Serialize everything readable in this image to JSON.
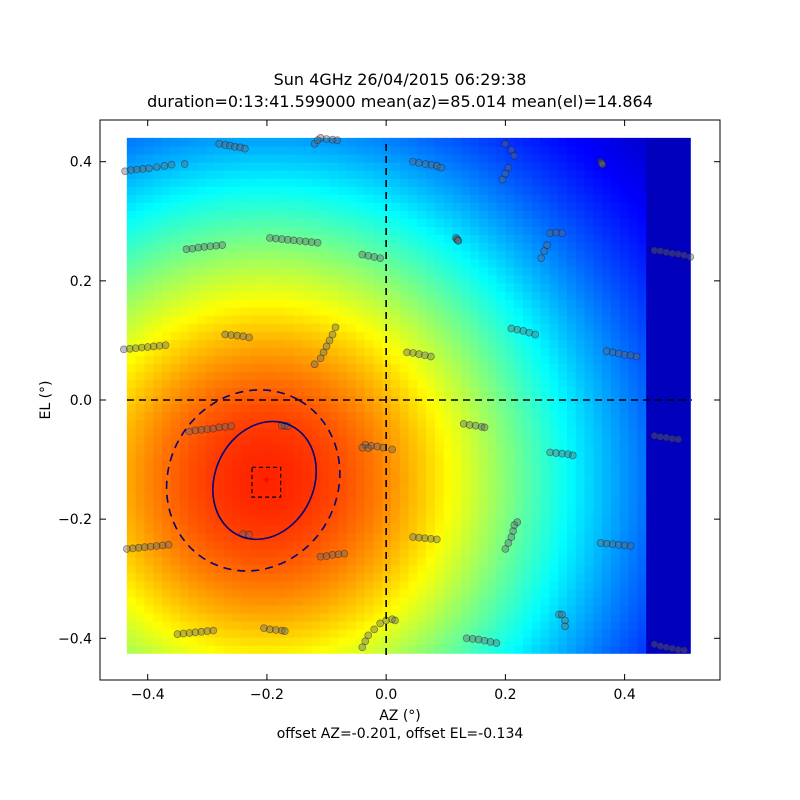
{
  "title_line1": "Sun 4GHz 26/04/2015 06:29:38",
  "title_line2": "duration=0:13:41.599000 mean(az)=85.014 mean(el)=14.864",
  "xlabel": "AZ (°)",
  "ylabel": "EL (°)",
  "footer": "offset AZ=-0.201, offset EL=-0.134",
  "chart_data": {
    "type": "heatmap",
    "title": "Sun 4GHz 26/04/2015 06:29:38",
    "subtitle": "duration=0:13:41.599000 mean(az)=85.014 mean(el)=14.864",
    "xlabel": "AZ (°)",
    "ylabel": "EL (°)",
    "note": "offset AZ=-0.201, offset EL=-0.134",
    "xlim": [
      -0.48,
      0.56
    ],
    "ylim": [
      -0.47,
      0.47
    ],
    "xticks": [
      -0.4,
      -0.2,
      0.0,
      0.2,
      0.4
    ],
    "xtick_labels": [
      "−0.4",
      "−0.2",
      "0.0",
      "0.2",
      "0.4"
    ],
    "yticks": [
      -0.4,
      -0.2,
      0.0,
      0.2,
      0.4
    ],
    "ytick_labels": [
      "−0.4",
      "−0.2",
      "0.0",
      "0.2",
      "0.4"
    ],
    "heatmap_extent": {
      "x": [
        -0.435,
        0.51
      ],
      "y": [
        -0.425,
        0.44
      ]
    },
    "colormap": "jet",
    "peak": {
      "az": -0.201,
      "el": -0.134
    },
    "crosshair": {
      "az": 0.0,
      "el": 0.0
    },
    "marker_color": "#ff0000",
    "contour_color": "#000080",
    "contours": [
      {
        "style": "solid",
        "center": [
          -0.204,
          -0.135
        ],
        "rx": 0.102,
        "ry": 0.083,
        "angle": -65
      },
      {
        "style": "dashed",
        "center": [
          -0.223,
          -0.135
        ],
        "rx": 0.155,
        "ry": 0.142,
        "angle": -60
      }
    ],
    "peak_box": {
      "x": [
        -0.225,
        -0.177
      ],
      "y": [
        -0.163,
        -0.113
      ]
    },
    "scan_points": [
      [
        -0.438,
        0.384
      ],
      [
        -0.428,
        0.386
      ],
      [
        -0.418,
        0.387
      ],
      [
        -0.408,
        0.388
      ],
      [
        -0.398,
        0.389
      ],
      [
        -0.385,
        0.391
      ],
      [
        -0.372,
        0.393
      ],
      [
        -0.36,
        0.395
      ],
      [
        -0.338,
        0.396
      ],
      [
        -0.28,
        0.43
      ],
      [
        -0.27,
        0.428
      ],
      [
        -0.262,
        0.427
      ],
      [
        -0.254,
        0.425
      ],
      [
        -0.245,
        0.424
      ],
      [
        -0.237,
        0.422
      ],
      [
        -0.11,
        0.44
      ],
      [
        -0.1,
        0.438
      ],
      [
        -0.09,
        0.437
      ],
      [
        -0.082,
        0.436
      ],
      [
        -0.12,
        0.43
      ],
      [
        -0.115,
        0.436
      ],
      [
        0.045,
        0.4
      ],
      [
        0.055,
        0.398
      ],
      [
        0.066,
        0.396
      ],
      [
        0.076,
        0.395
      ],
      [
        0.085,
        0.393
      ],
      [
        0.092,
        0.39
      ],
      [
        0.2,
        0.43
      ],
      [
        0.21,
        0.42
      ],
      [
        0.215,
        0.41
      ],
      [
        0.205,
        0.39
      ],
      [
        0.2,
        0.38
      ],
      [
        0.195,
        0.37
      ],
      [
        0.36,
        0.4
      ],
      [
        0.361,
        0.398
      ],
      [
        0.362,
        0.397
      ],
      [
        0.363,
        0.395
      ],
      [
        -0.335,
        0.253
      ],
      [
        -0.325,
        0.254
      ],
      [
        -0.315,
        0.256
      ],
      [
        -0.305,
        0.257
      ],
      [
        -0.295,
        0.258
      ],
      [
        -0.285,
        0.259
      ],
      [
        -0.275,
        0.26
      ],
      [
        -0.195,
        0.272
      ],
      [
        -0.185,
        0.271
      ],
      [
        -0.175,
        0.27
      ],
      [
        -0.165,
        0.269
      ],
      [
        -0.155,
        0.268
      ],
      [
        -0.145,
        0.267
      ],
      [
        -0.135,
        0.266
      ],
      [
        -0.125,
        0.265
      ],
      [
        -0.115,
        0.264
      ],
      [
        -0.04,
        0.244
      ],
      [
        -0.03,
        0.242
      ],
      [
        -0.02,
        0.24
      ],
      [
        -0.01,
        0.238
      ],
      [
        0.117,
        0.272
      ],
      [
        0.119,
        0.27
      ],
      [
        0.12,
        0.268
      ],
      [
        0.121,
        0.267
      ],
      [
        0.275,
        0.28
      ],
      [
        0.285,
        0.281
      ],
      [
        0.295,
        0.28
      ],
      [
        0.27,
        0.26
      ],
      [
        0.265,
        0.25
      ],
      [
        0.26,
        0.238
      ],
      [
        0.45,
        0.251
      ],
      [
        0.46,
        0.25
      ],
      [
        0.47,
        0.248
      ],
      [
        0.48,
        0.246
      ],
      [
        0.49,
        0.245
      ],
      [
        0.5,
        0.243
      ],
      [
        0.51,
        0.24
      ],
      [
        -0.44,
        0.085
      ],
      [
        -0.43,
        0.086
      ],
      [
        -0.42,
        0.087
      ],
      [
        -0.41,
        0.088
      ],
      [
        -0.4,
        0.089
      ],
      [
        -0.39,
        0.09
      ],
      [
        -0.38,
        0.091
      ],
      [
        -0.37,
        0.092
      ],
      [
        -0.27,
        0.11
      ],
      [
        -0.26,
        0.109
      ],
      [
        -0.25,
        0.108
      ],
      [
        -0.24,
        0.107
      ],
      [
        -0.23,
        0.105
      ],
      [
        -0.12,
        0.06
      ],
      [
        -0.11,
        0.07
      ],
      [
        -0.105,
        0.08
      ],
      [
        -0.1,
        0.09
      ],
      [
        -0.095,
        0.1
      ],
      [
        -0.09,
        0.11
      ],
      [
        -0.085,
        0.122
      ],
      [
        0.035,
        0.08
      ],
      [
        0.045,
        0.079
      ],
      [
        0.055,
        0.077
      ],
      [
        0.065,
        0.075
      ],
      [
        0.075,
        0.073
      ],
      [
        0.21,
        0.12
      ],
      [
        0.22,
        0.118
      ],
      [
        0.23,
        0.116
      ],
      [
        0.24,
        0.113
      ],
      [
        0.25,
        0.11
      ],
      [
        0.37,
        0.082
      ],
      [
        0.38,
        0.08
      ],
      [
        0.39,
        0.078
      ],
      [
        0.4,
        0.076
      ],
      [
        0.41,
        0.075
      ],
      [
        0.42,
        0.073
      ],
      [
        -0.33,
        -0.053
      ],
      [
        -0.32,
        -0.051
      ],
      [
        -0.31,
        -0.05
      ],
      [
        -0.3,
        -0.049
      ],
      [
        -0.29,
        -0.048
      ],
      [
        -0.28,
        -0.046
      ],
      [
        -0.27,
        -0.045
      ],
      [
        -0.26,
        -0.044
      ],
      [
        -0.175,
        -0.043
      ],
      [
        -0.17,
        -0.043
      ],
      [
        -0.165,
        -0.044
      ],
      [
        -0.035,
        -0.075
      ],
      [
        -0.025,
        -0.077
      ],
      [
        -0.015,
        -0.078
      ],
      [
        -0.005,
        -0.08
      ],
      [
        -0.04,
        -0.08
      ],
      [
        -0.03,
        -0.081
      ],
      [
        0.01,
        -0.083
      ],
      [
        0.13,
        -0.04
      ],
      [
        0.14,
        -0.042
      ],
      [
        0.15,
        -0.043
      ],
      [
        0.16,
        -0.045
      ],
      [
        0.165,
        -0.046
      ],
      [
        0.275,
        -0.088
      ],
      [
        0.285,
        -0.089
      ],
      [
        0.295,
        -0.09
      ],
      [
        0.305,
        -0.091
      ],
      [
        0.313,
        -0.093
      ],
      [
        0.45,
        -0.06
      ],
      [
        0.46,
        -0.062
      ],
      [
        0.47,
        -0.063
      ],
      [
        0.48,
        -0.065
      ],
      [
        0.49,
        -0.066
      ],
      [
        -0.435,
        -0.25
      ],
      [
        -0.425,
        -0.249
      ],
      [
        -0.415,
        -0.248
      ],
      [
        -0.405,
        -0.247
      ],
      [
        -0.395,
        -0.246
      ],
      [
        -0.385,
        -0.245
      ],
      [
        -0.375,
        -0.244
      ],
      [
        -0.365,
        -0.243
      ],
      [
        -0.24,
        -0.225
      ],
      [
        -0.23,
        -0.226
      ],
      [
        -0.11,
        -0.263
      ],
      [
        -0.1,
        -0.262
      ],
      [
        -0.09,
        -0.26
      ],
      [
        -0.08,
        -0.259
      ],
      [
        -0.07,
        -0.258
      ],
      [
        0.045,
        -0.23
      ],
      [
        0.055,
        -0.231
      ],
      [
        0.065,
        -0.232
      ],
      [
        0.075,
        -0.233
      ],
      [
        0.085,
        -0.234
      ],
      [
        0.2,
        -0.25
      ],
      [
        0.205,
        -0.24
      ],
      [
        0.21,
        -0.23
      ],
      [
        0.213,
        -0.22
      ],
      [
        0.215,
        -0.21
      ],
      [
        0.22,
        -0.205
      ],
      [
        0.36,
        -0.24
      ],
      [
        0.37,
        -0.241
      ],
      [
        0.38,
        -0.242
      ],
      [
        0.39,
        -0.243
      ],
      [
        0.4,
        -0.244
      ],
      [
        0.41,
        -0.245
      ],
      [
        -0.35,
        -0.393
      ],
      [
        -0.34,
        -0.392
      ],
      [
        -0.33,
        -0.391
      ],
      [
        -0.32,
        -0.39
      ],
      [
        -0.31,
        -0.389
      ],
      [
        -0.3,
        -0.388
      ],
      [
        -0.29,
        -0.387
      ],
      [
        -0.205,
        -0.383
      ],
      [
        -0.195,
        -0.385
      ],
      [
        -0.185,
        -0.386
      ],
      [
        -0.175,
        -0.387
      ],
      [
        -0.17,
        -0.388
      ],
      [
        -0.04,
        -0.415
      ],
      [
        -0.035,
        -0.405
      ],
      [
        -0.03,
        -0.395
      ],
      [
        -0.02,
        -0.385
      ],
      [
        -0.01,
        -0.375
      ],
      [
        0.0,
        -0.37
      ],
      [
        0.01,
        -0.368
      ],
      [
        0.015,
        -0.37
      ],
      [
        0.135,
        -0.4
      ],
      [
        0.145,
        -0.401
      ],
      [
        0.155,
        -0.402
      ],
      [
        0.165,
        -0.404
      ],
      [
        0.175,
        -0.406
      ],
      [
        0.185,
        -0.408
      ],
      [
        0.29,
        -0.36
      ],
      [
        0.295,
        -0.36
      ],
      [
        0.3,
        -0.37
      ],
      [
        0.3,
        -0.38
      ],
      [
        0.45,
        -0.41
      ],
      [
        0.46,
        -0.413
      ],
      [
        0.47,
        -0.415
      ],
      [
        0.48,
        -0.417
      ],
      [
        0.49,
        -0.419
      ],
      [
        0.5,
        -0.42
      ]
    ]
  }
}
